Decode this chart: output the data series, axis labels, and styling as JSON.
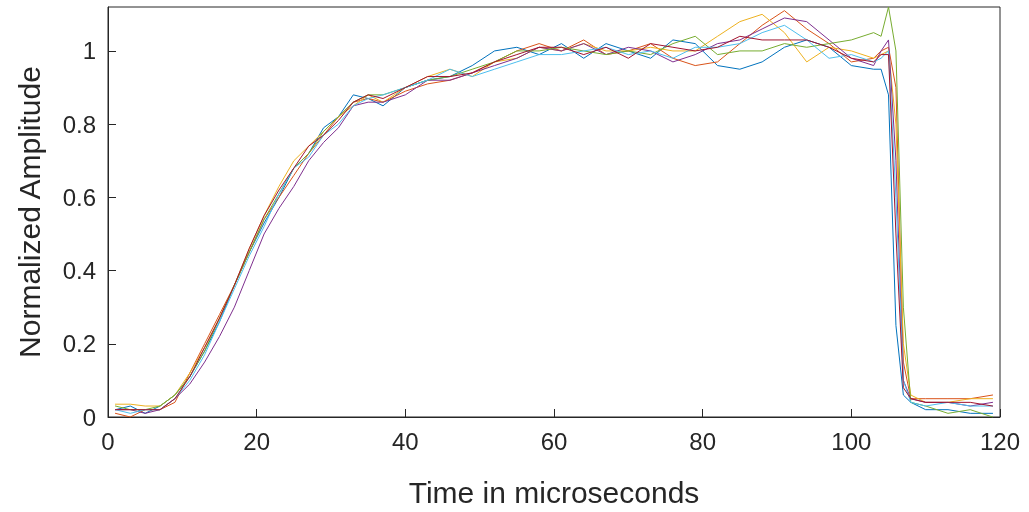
{
  "chart_data": {
    "type": "line",
    "xlabel": "Time in microseconds",
    "ylabel": "Normalized Amplitude",
    "x": [
      1,
      3,
      5,
      7,
      9,
      11,
      13,
      15,
      17,
      19,
      21,
      23,
      25,
      27,
      29,
      31,
      33,
      35,
      37,
      40,
      43,
      46,
      49,
      52,
      55,
      58,
      61,
      64,
      67,
      70,
      73,
      76,
      79,
      82,
      85,
      88,
      91,
      94,
      97,
      100,
      103,
      104,
      105,
      106,
      107,
      108,
      110,
      113,
      116,
      119
    ],
    "xlim": [
      0,
      120
    ],
    "xticks": [
      0,
      20,
      40,
      60,
      80,
      100,
      120
    ],
    "ylim": [
      0,
      1.12
    ],
    "yticks": [
      0,
      0.2,
      0.4,
      0.6,
      0.8,
      1
    ],
    "marker": "none",
    "line_style": "solid",
    "grid": false,
    "series": [
      {
        "color": "#0072bd",
        "values": [
          0.02,
          0.03,
          0.01,
          0.03,
          0.06,
          0.11,
          0.18,
          0.26,
          0.36,
          0.45,
          0.53,
          0.6,
          0.68,
          0.72,
          0.79,
          0.82,
          0.88,
          0.87,
          0.85,
          0.9,
          0.92,
          0.93,
          0.96,
          1.0,
          1.01,
          0.99,
          1.02,
          0.98,
          1.02,
          1.0,
          0.98,
          1.03,
          1.02,
          0.96,
          0.95,
          0.97,
          1.01,
          1.03,
          1.01,
          0.96,
          0.95,
          0.95,
          0.88,
          0.25,
          0.06,
          0.04,
          0.02,
          0.02,
          0.01,
          0.01
        ]
      },
      {
        "color": "#d95319",
        "values": [
          0.01,
          0.0,
          0.02,
          0.02,
          0.04,
          0.12,
          0.2,
          0.28,
          0.36,
          0.45,
          0.54,
          0.6,
          0.66,
          0.72,
          0.77,
          0.82,
          0.86,
          0.87,
          0.86,
          0.89,
          0.91,
          0.92,
          0.94,
          0.97,
          1.0,
          1.02,
          1.0,
          1.03,
          0.99,
          1.0,
          1.02,
          0.98,
          0.96,
          0.97,
          1.02,
          1.07,
          1.11,
          1.06,
          1.02,
          0.97,
          0.98,
          1.0,
          1.01,
          0.9,
          0.15,
          0.05,
          0.05,
          0.05,
          0.05,
          0.06
        ]
      },
      {
        "color": "#edb120",
        "values": [
          0.035,
          0.035,
          0.03,
          0.03,
          0.06,
          0.12,
          0.19,
          0.27,
          0.36,
          0.46,
          0.55,
          0.63,
          0.7,
          0.74,
          0.78,
          0.82,
          0.85,
          0.88,
          0.86,
          0.9,
          0.93,
          0.95,
          0.93,
          0.97,
          0.98,
          1.01,
          1.0,
          1.02,
          1.0,
          1.0,
          1.01,
          1.0,
          1.0,
          1.04,
          1.08,
          1.1,
          1.05,
          0.97,
          1.01,
          1.0,
          0.98,
          0.99,
          1.0,
          0.8,
          0.2,
          0.06,
          0.04,
          0.04,
          0.05,
          0.05
        ]
      },
      {
        "color": "#7e2f8e",
        "values": [
          0.02,
          0.02,
          0.01,
          0.02,
          0.05,
          0.09,
          0.15,
          0.22,
          0.3,
          0.4,
          0.5,
          0.57,
          0.63,
          0.7,
          0.75,
          0.79,
          0.85,
          0.86,
          0.86,
          0.88,
          0.92,
          0.92,
          0.94,
          0.96,
          0.98,
          1.01,
          1.0,
          1.02,
          0.99,
          1.01,
          1.0,
          0.97,
          0.99,
          1.02,
          1.03,
          1.06,
          1.09,
          1.08,
          1.03,
          0.98,
          0.96,
          1.0,
          1.03,
          0.7,
          0.1,
          0.05,
          0.04,
          0.04,
          0.03,
          0.04
        ]
      },
      {
        "color": "#77ac30",
        "values": [
          0.03,
          0.02,
          0.02,
          0.03,
          0.06,
          0.11,
          0.18,
          0.27,
          0.36,
          0.45,
          0.54,
          0.61,
          0.68,
          0.72,
          0.78,
          0.82,
          0.86,
          0.88,
          0.88,
          0.9,
          0.92,
          0.93,
          0.95,
          0.97,
          1.0,
          1.0,
          1.01,
          1.0,
          0.99,
          1.0,
          0.99,
          1.02,
          1.04,
          0.99,
          1.0,
          1.0,
          1.02,
          1.01,
          1.02,
          1.03,
          1.05,
          1.04,
          1.12,
          1.0,
          0.3,
          0.04,
          0.03,
          0.01,
          0.02,
          0.0
        ]
      },
      {
        "color": "#4dbeee",
        "values": [
          0.02,
          0.01,
          0.02,
          0.02,
          0.05,
          0.1,
          0.17,
          0.26,
          0.35,
          0.44,
          0.52,
          0.61,
          0.68,
          0.71,
          0.77,
          0.8,
          0.85,
          0.87,
          0.88,
          0.9,
          0.92,
          0.95,
          0.93,
          0.95,
          0.97,
          0.99,
          0.99,
          1.0,
          1.01,
          0.99,
          1.0,
          0.98,
          1.01,
          1.01,
          1.02,
          1.05,
          1.07,
          1.03,
          0.98,
          0.99,
          0.97,
          0.98,
          1.0,
          0.6,
          0.1,
          0.04,
          0.03,
          0.04,
          0.03,
          0.03
        ]
      },
      {
        "color": "#a2142f",
        "values": [
          0.02,
          0.02,
          0.02,
          0.02,
          0.05,
          0.11,
          0.19,
          0.27,
          0.36,
          0.46,
          0.55,
          0.62,
          0.68,
          0.74,
          0.77,
          0.81,
          0.86,
          0.88,
          0.87,
          0.9,
          0.93,
          0.93,
          0.94,
          0.97,
          0.99,
          1.01,
          1.01,
          0.99,
          1.01,
          0.98,
          1.02,
          1.01,
          1.0,
          1.01,
          1.04,
          1.03,
          1.03,
          1.03,
          1.01,
          0.98,
          0.97,
          0.99,
          0.99,
          0.5,
          0.08,
          0.05,
          0.04,
          0.04,
          0.04,
          0.03
        ]
      }
    ]
  }
}
